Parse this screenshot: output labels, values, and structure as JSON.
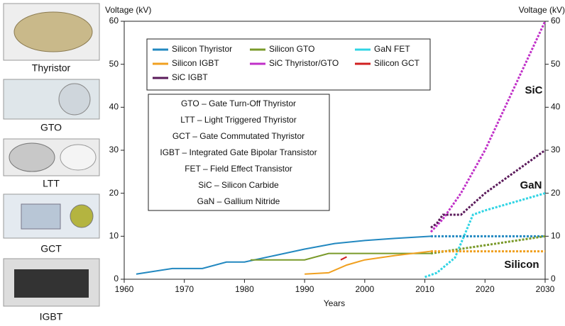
{
  "chart_data": {
    "type": "line",
    "y_label": "Voltage (kV)",
    "y2_label": "Voltage (kV)",
    "x_label": "Years",
    "xlim": [
      1960,
      2030
    ],
    "xticks": [
      1960,
      1970,
      1980,
      1990,
      2000,
      2010,
      2020,
      2030
    ],
    "ylim": [
      0,
      60
    ],
    "yticks": [
      0,
      10,
      20,
      30,
      40,
      50,
      60
    ],
    "y2lim": [
      0,
      60
    ],
    "y2ticks": [
      0,
      10,
      20,
      30,
      40,
      50,
      60
    ],
    "grid": false,
    "series": [
      {
        "name": "Silicon Thyristor",
        "color": "#2288c0",
        "segments": [
          {
            "style": "solid",
            "x": [
              1962,
              1968,
              1973,
              1977,
              1980,
              1985,
              1990,
              1995,
              2000,
              2005,
              2011
            ],
            "values": [
              1.2,
              2.5,
              2.5,
              4,
              4,
              5.5,
              7,
              8.3,
              9,
              9.5,
              10
            ]
          },
          {
            "style": "dotted",
            "x": [
              2011,
              2030
            ],
            "values": [
              10,
              10
            ]
          }
        ]
      },
      {
        "name": "Silicon GTO",
        "color": "#7a9a2a",
        "segments": [
          {
            "style": "solid",
            "x": [
              1981,
              1990,
              1994,
              2011
            ],
            "values": [
              4.5,
              4.5,
              6,
              6
            ]
          },
          {
            "style": "dotted",
            "x": [
              2011,
              2030
            ],
            "values": [
              6,
              10
            ]
          }
        ]
      },
      {
        "name": "GaN FET",
        "color": "#30d4e4",
        "segments": [
          {
            "style": "dotted",
            "x": [
              2010,
              2012,
              2015,
              2018,
              2020,
              2025,
              2030
            ],
            "values": [
              0.5,
              1.5,
              5,
              15,
              16,
              18,
              20
            ]
          }
        ]
      },
      {
        "name": "Silicon IGBT",
        "color": "#f0a020",
        "segments": [
          {
            "style": "solid",
            "x": [
              1990,
              1994,
              1997,
              2000,
              2005,
              2011
            ],
            "values": [
              1.2,
              1.5,
              3.3,
              4.5,
              5.5,
              6.5
            ]
          },
          {
            "style": "dotted",
            "x": [
              2011,
              2030
            ],
            "values": [
              6.5,
              6.5
            ]
          }
        ]
      },
      {
        "name": "SiC Thyristor/GTO",
        "color": "#c030c8",
        "segments": [
          {
            "style": "dotted",
            "x": [
              2011,
              2013,
              2016,
              2020,
              2025,
              2030
            ],
            "values": [
              11,
              14,
              20,
              30,
              45,
              60
            ]
          }
        ]
      },
      {
        "name": "Silicon GCT",
        "color": "#d02020",
        "segments": [
          {
            "style": "solid",
            "x": [
              1996,
              1997
            ],
            "values": [
              4.5,
              5.2
            ]
          }
        ]
      },
      {
        "name": "SiC IGBT",
        "color": "#5a1a5a",
        "segments": [
          {
            "style": "dotted",
            "x": [
              2011,
              2012,
              2013,
              2016,
              2020,
              2025,
              2030
            ],
            "values": [
              12,
              13,
              15,
              15,
              20,
              25,
              30
            ]
          }
        ]
      }
    ],
    "abbreviations": [
      "GTO – Gate Turn-Off Thyristor",
      "LTT – Light Triggered Thyristor",
      "GCT – Gate Commutated Thyristor",
      "IGBT – Integrated Gate Bipolar Transistor",
      "FET – Field Effect Transistor",
      "SiC – Silicon Carbide",
      "GaN – Gallium Nitride"
    ],
    "annotations": [
      "SiC",
      "GaN",
      "Silicon"
    ],
    "components": [
      "Thyristor",
      "GTO",
      "LTT",
      "GCT",
      "IGBT"
    ]
  }
}
